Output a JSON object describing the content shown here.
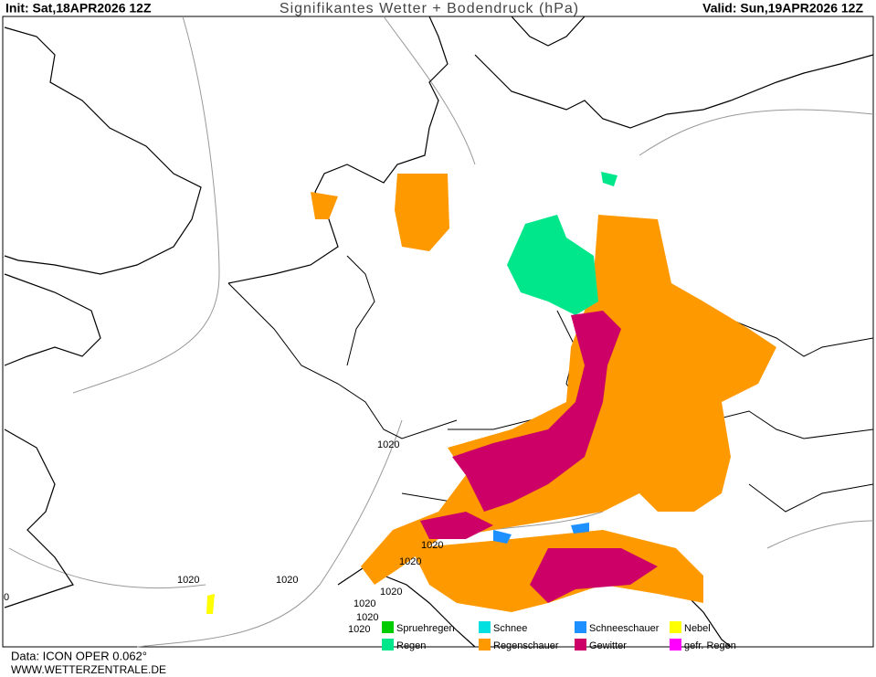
{
  "header": {
    "init": "Init: Sat,18APR2026 12Z",
    "title": "Signifikantes Wetter +  Bodendruck (hPa)",
    "valid": "Valid: Sun,19APR2026 12Z"
  },
  "isobar_labels": [
    "1020",
    "1020",
    "1020",
    "1020",
    "1020",
    "1020",
    "1020",
    "1020",
    "1020",
    "0"
  ],
  "legend": [
    {
      "label": "Spruehregen",
      "color": "#00cc00"
    },
    {
      "label": "Schnee",
      "color": "#00e0e0"
    },
    {
      "label": "Schneeschauer",
      "color": "#1e90ff"
    },
    {
      "label": "Nebel",
      "color": "#ffff00"
    },
    {
      "label": "Regen",
      "color": "#00e68a"
    },
    {
      "label": "Regenschauer",
      "color": "#ff9900"
    },
    {
      "label": "Gewitter",
      "color": "#cc0066"
    },
    {
      "label": "gefr. Regen",
      "color": "#ff00ff"
    }
  ],
  "footer": {
    "data": "Data: ICON OPER 0.062°",
    "site": "WWW.WETTERZENTRALE.DE"
  }
}
